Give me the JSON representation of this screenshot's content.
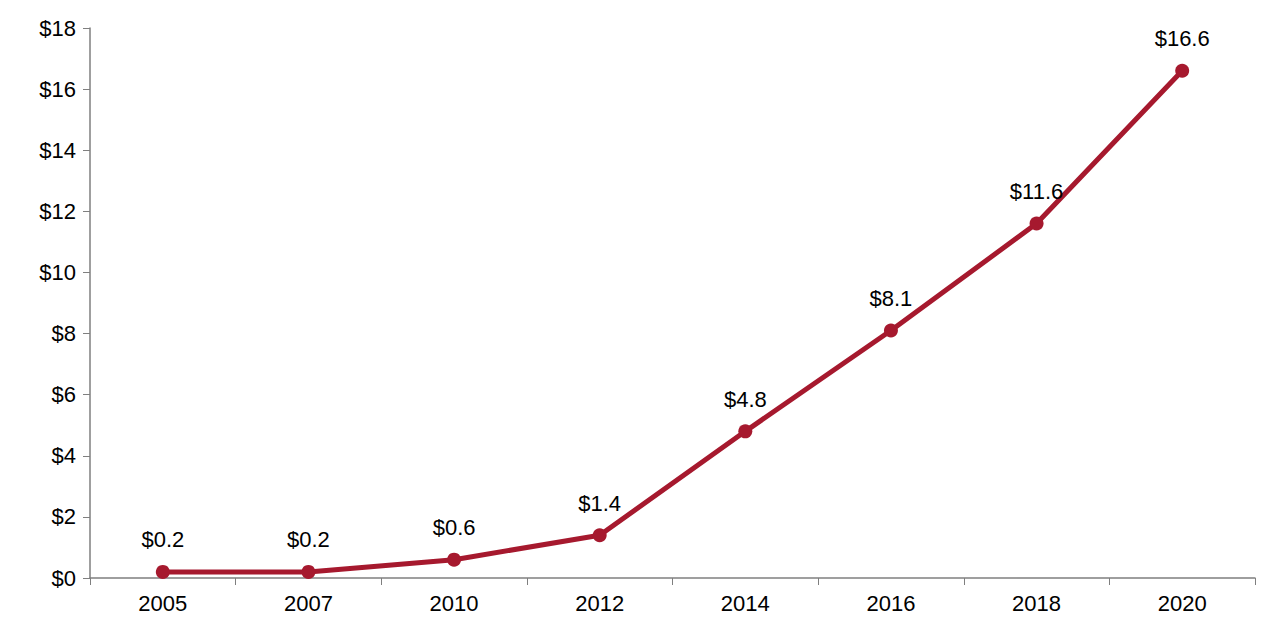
{
  "chart_data": {
    "type": "line",
    "categories": [
      "2005",
      "2007",
      "2010",
      "2012",
      "2014",
      "2016",
      "2018",
      "2020"
    ],
    "values": [
      0.2,
      0.2,
      0.6,
      1.4,
      4.8,
      8.1,
      11.6,
      16.6
    ],
    "value_labels": [
      "$0.2",
      "$0.2",
      "$0.6",
      "$1.4",
      "$4.8",
      "$8.1",
      "$11.6",
      "$16.6"
    ],
    "color": "#a6192e",
    "marker": "circle",
    "data_labels": true,
    "grid": false,
    "ylim": [
      0,
      18
    ],
    "yticks": [
      {
        "value": 0,
        "label": "$0"
      },
      {
        "value": 2,
        "label": "$2"
      },
      {
        "value": 4,
        "label": "$4"
      },
      {
        "value": 6,
        "label": "$6"
      },
      {
        "value": 8,
        "label": "$8"
      },
      {
        "value": 10,
        "label": "$10"
      },
      {
        "value": 12,
        "label": "$12"
      },
      {
        "value": 14,
        "label": "$14"
      },
      {
        "value": 16,
        "label": "$16"
      },
      {
        "value": 18,
        "label": "$18"
      }
    ]
  }
}
